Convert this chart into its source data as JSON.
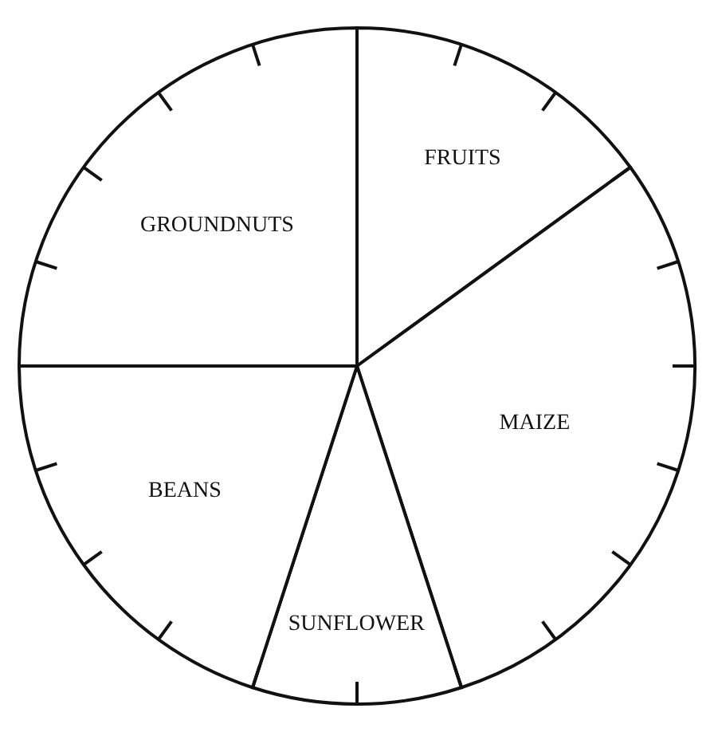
{
  "chart_data": {
    "type": "pie",
    "categories": [
      "FRUITS",
      "MAIZE",
      "SUNFLOWER",
      "BEANS",
      "GROUNDNUTS"
    ],
    "values": [
      15,
      30,
      10,
      20,
      25
    ],
    "colors": [
      "#ffffff",
      "#ffffff",
      "#ffffff",
      "#ffffff",
      "#ffffff"
    ],
    "legend": false
  }
}
